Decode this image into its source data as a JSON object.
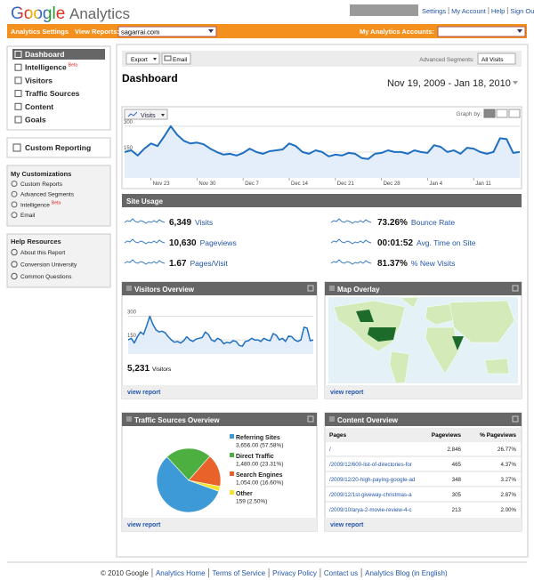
{
  "header": {
    "logo_google": "Google",
    "logo_analytics": "Analytics",
    "links": [
      "Settings",
      "My Account",
      "Help",
      "Sign Out"
    ]
  },
  "toolbar": {
    "settings": "Analytics Settings",
    "view_reports": "View Reports:",
    "site": "sagarrai.com",
    "accounts": "My Analytics Accounts:"
  },
  "sidebar": {
    "nav": [
      "Dashboard",
      "Intelligence",
      "Visitors",
      "Traffic Sources",
      "Content",
      "Goals"
    ],
    "beta": "Beta",
    "custom_reporting": "Custom Reporting",
    "customizations": {
      "title": "My Customizations",
      "items": [
        "Custom Reports",
        "Advanced Segments",
        "Intelligence",
        "Email"
      ]
    },
    "help": {
      "title": "Help Resources",
      "items": [
        "About this Report",
        "Conversion University",
        "Common Questions"
      ]
    }
  },
  "dashboard": {
    "export": "Export",
    "email": "Email",
    "segments_label": "Advanced Segments:",
    "segment": "All Visits",
    "title": "Dashboard",
    "date_range": "Nov 19, 2009 - Jan 18, 2010",
    "metric": "Visits",
    "graph_by": "Graph by:"
  },
  "chart_data": {
    "type": "line",
    "color": "#1f6fc0",
    "ylim": [
      0,
      320
    ],
    "yticks": [
      150,
      300
    ],
    "grid": true,
    "categories": [
      null,
      null,
      null,
      null,
      "Nov 23",
      null,
      null,
      null,
      null,
      null,
      null,
      "Nov 30",
      null,
      null,
      null,
      null,
      null,
      null,
      "Dec 7",
      null,
      null,
      null,
      null,
      null,
      null,
      "Dec 14",
      null,
      null,
      null,
      null,
      null,
      null,
      "Dec 21",
      null,
      null,
      null,
      null,
      null,
      null,
      "Dec 28",
      null,
      null,
      null,
      null,
      null,
      null,
      "Jan 4",
      null,
      null,
      null,
      null,
      null,
      null,
      "Jan 11",
      null,
      null,
      null,
      null,
      null,
      null,
      null
    ],
    "values": [
      150,
      160,
      130,
      170,
      200,
      185,
      240,
      300,
      250,
      215,
      200,
      205,
      195,
      170,
      150,
      135,
      140,
      130,
      145,
      170,
      150,
      140,
      155,
      160,
      165,
      200,
      185,
      150,
      140,
      160,
      150,
      125,
      135,
      130,
      145,
      140,
      115,
      110,
      140,
      145,
      160,
      150,
      150,
      140,
      160,
      150,
      145,
      190,
      180,
      150,
      160,
      140,
      175,
      170,
      150,
      140,
      150,
      230,
      225,
      145,
      150
    ]
  },
  "site_usage": {
    "title": "Site Usage",
    "metrics": [
      {
        "value": "6,349",
        "label": "Visits"
      },
      {
        "value": "10,630",
        "label": "Pageviews"
      },
      {
        "value": "1.67",
        "label": "Pages/Visit"
      },
      {
        "value": "73.26%",
        "label": "Bounce Rate"
      },
      {
        "value": "00:01:52",
        "label": "Avg. Time on Site"
      },
      {
        "value": "81.37%",
        "label": "% New Visits"
      }
    ]
  },
  "visitors_overview": {
    "title": "Visitors Overview",
    "ylim": [
      60,
      320
    ],
    "yticks": [
      150,
      300
    ],
    "total": "5,231",
    "total_label": "Visitors",
    "link": "view report"
  },
  "map_overlay": {
    "title": "Map Overlay",
    "link": "view report"
  },
  "traffic_sources": {
    "title": "Traffic Sources Overview",
    "link": "view report",
    "sources": [
      {
        "name": "Referring Sites",
        "value": "3,656.00 (57.58%)",
        "percent": 57.58,
        "color": "#3d9ad6"
      },
      {
        "name": "Direct Traffic",
        "value": "1,480.00 (23.31%)",
        "percent": 23.31,
        "color": "#4caf3f"
      },
      {
        "name": "Search Engines",
        "value": "1,054.00 (16.60%)",
        "percent": 16.6,
        "color": "#e8622a"
      },
      {
        "name": "Other",
        "value": "159 (2.50%)",
        "percent": 2.5,
        "color": "#f3e42c"
      }
    ]
  },
  "content_overview": {
    "title": "Content Overview",
    "link": "view report",
    "columns": [
      "Pages",
      "Pageviews",
      "% Pageviews"
    ],
    "rows": [
      [
        "/",
        "2,846",
        "26.77%"
      ],
      [
        "/2009/12/600-list-of-directories-for",
        "465",
        "4.37%"
      ],
      [
        "/2009/12/20-high-paying-google-ad",
        "348",
        "3.27%"
      ],
      [
        "/2009/12/1st-giveway-christmas-a",
        "305",
        "2.87%"
      ],
      [
        "/2009/10/arya-2-movie-review-4-c",
        "213",
        "2.00%"
      ]
    ]
  },
  "footer": {
    "copyright": "© 2010 Google",
    "links": [
      "Analytics Home",
      "Terms of Service",
      "Privacy Policy",
      "Contact us",
      "Analytics Blog (in English)"
    ]
  }
}
